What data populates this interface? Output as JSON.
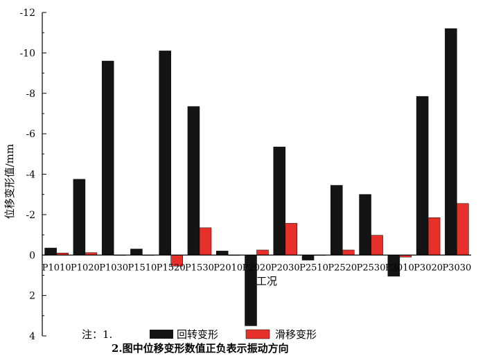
{
  "chart_data": {
    "type": "bar",
    "xlabel": "工况",
    "ylabel": "位移变形值/mm",
    "ylim": [
      -12,
      4
    ],
    "y_axis_inverted": true,
    "y_ticks": [
      -12,
      -10,
      -8,
      -6,
      -4,
      -2,
      0,
      2,
      4
    ],
    "y_tick_labels": [
      "-12",
      "-10",
      "-8",
      "-6",
      "-4",
      "-2",
      "0",
      "2",
      "4"
    ],
    "categories": [
      "P1010",
      "P1020",
      "P1030",
      "P1510",
      "P1520",
      "P1530",
      "P2010",
      "P2020",
      "P2030",
      "P2510",
      "P2520",
      "P2530",
      "P3010",
      "P3020",
      "P3030"
    ],
    "series": [
      {
        "name": "回转变形",
        "color": "#141414",
        "values": [
          -0.35,
          -3.75,
          -9.6,
          -0.3,
          -10.1,
          -7.35,
          -0.2,
          3.5,
          -5.35,
          0.25,
          -3.45,
          -3.0,
          1.05,
          -7.85,
          -11.2
        ]
      },
      {
        "name": "滑移变形",
        "color": "#e8302a",
        "values": [
          -0.1,
          -0.12,
          0.0,
          0.0,
          0.55,
          -1.35,
          0.0,
          -0.25,
          -1.57,
          0.0,
          -0.25,
          -0.98,
          0.1,
          -1.85,
          -2.55
        ]
      }
    ],
    "grid": false,
    "legend_position": "bottom-center"
  },
  "note": {
    "line1_prefix": "注：1.",
    "line2": "2.图中位移变形数值正负表示振动方向"
  }
}
